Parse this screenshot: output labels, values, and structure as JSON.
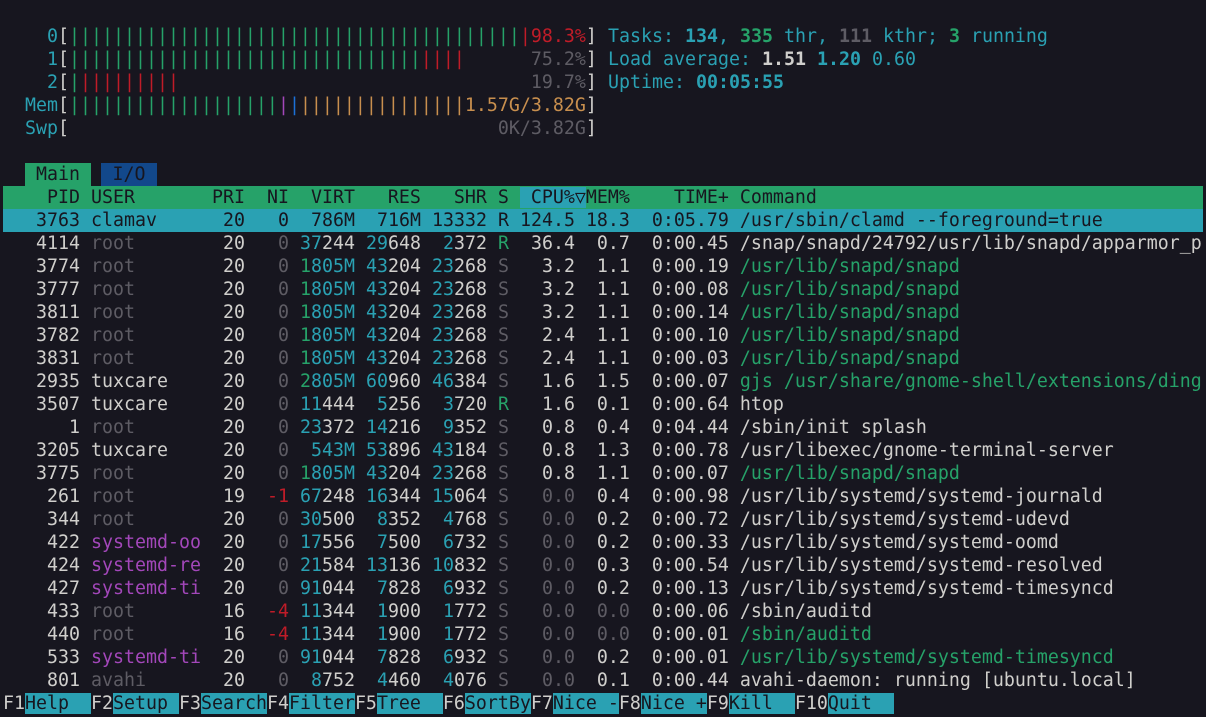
{
  "colors": {
    "background": "#17161f",
    "header_green": "#26a269",
    "selection_cyan": "#2aa1b3",
    "io_tab_blue": "#12488b",
    "red": "#c01c28",
    "magenta": "#a347ba",
    "orange": "#c88f4e"
  },
  "meters": {
    "cpus": [
      {
        "label": "0",
        "value_text": "98.3%",
        "percent": 98.3,
        "segments": [
          {
            "color": "green",
            "count": 41
          },
          {
            "color": "red",
            "count": 1
          }
        ],
        "value_color": "red"
      },
      {
        "label": "1",
        "value_text": "75.2%",
        "percent": 75.2,
        "segments": [
          {
            "color": "green",
            "count": 32
          },
          {
            "color": "red",
            "count": 4
          }
        ],
        "value_color": "gray"
      },
      {
        "label": "2",
        "value_text": "19.7%",
        "percent": 19.7,
        "segments": [
          {
            "color": "green",
            "count": 1
          },
          {
            "color": "red",
            "count": 9
          }
        ],
        "value_color": "gray"
      }
    ],
    "mem": {
      "label": "Mem",
      "value_text": "1.57G/3.82G",
      "segments": [
        {
          "color": "green",
          "count": 19
        },
        {
          "color": "magenta",
          "count": 1
        },
        {
          "color": "blue",
          "count": 1
        },
        {
          "color": "orange",
          "count": 15
        }
      ]
    },
    "swp": {
      "label": "Swp",
      "value_text": "0K/3.82G",
      "segments": []
    }
  },
  "summary": {
    "tasks_label": "Tasks: ",
    "tasks": "134",
    "threads": "335",
    "threads_label": " thr, ",
    "kthreads": "111",
    "kthreads_label": " kthr; ",
    "running": "3",
    "running_label": " running",
    "load_label": "Load average: ",
    "load1": "1.51",
    "load5": "1.20",
    "load15": "0.60",
    "uptime_label": "Uptime: ",
    "uptime": "00:05:55"
  },
  "tabs": [
    {
      "label": "Main",
      "active": true
    },
    {
      "label": "I/O",
      "active": false
    }
  ],
  "columns": {
    "pid": "PID",
    "user": "USER",
    "pri": "PRI",
    "ni": "NI",
    "virt": "VIRT",
    "res": "RES",
    "shr": "SHR",
    "s": "S",
    "cpu": "CPU%▽",
    "mem": "MEM%",
    "time": "TIME+",
    "command": "Command"
  },
  "sort_column": "CPU%",
  "processes": [
    {
      "pid": "3763",
      "user": "clamav",
      "pri": "20",
      "ni": "0",
      "virt": "786M",
      "res": "716M",
      "shr": "13332",
      "s": "R",
      "cpu": "124.5",
      "mem": "18.3",
      "time": "0:05.79",
      "command": "/usr/sbin/clamd --foreground=true",
      "selected": true,
      "thread": false
    },
    {
      "pid": "4114",
      "user": "root",
      "pri": "20",
      "ni": "0",
      "virt": "37244",
      "res": "29648",
      "shr": "2372",
      "s": "R",
      "cpu": "36.4",
      "mem": "0.7",
      "time": "0:00.45",
      "command": "/snap/snapd/24792/usr/lib/snapd/apparmor_p",
      "thread": false
    },
    {
      "pid": "3774",
      "user": "root",
      "pri": "20",
      "ni": "0",
      "virt": "1805M",
      "res": "43204",
      "shr": "23268",
      "s": "S",
      "cpu": "3.2",
      "mem": "1.1",
      "time": "0:00.19",
      "command": "/usr/lib/snapd/snapd",
      "thread": true
    },
    {
      "pid": "3777",
      "user": "root",
      "pri": "20",
      "ni": "0",
      "virt": "1805M",
      "res": "43204",
      "shr": "23268",
      "s": "S",
      "cpu": "3.2",
      "mem": "1.1",
      "time": "0:00.08",
      "command": "/usr/lib/snapd/snapd",
      "thread": true
    },
    {
      "pid": "3811",
      "user": "root",
      "pri": "20",
      "ni": "0",
      "virt": "1805M",
      "res": "43204",
      "shr": "23268",
      "s": "S",
      "cpu": "3.2",
      "mem": "1.1",
      "time": "0:00.14",
      "command": "/usr/lib/snapd/snapd",
      "thread": true
    },
    {
      "pid": "3782",
      "user": "root",
      "pri": "20",
      "ni": "0",
      "virt": "1805M",
      "res": "43204",
      "shr": "23268",
      "s": "S",
      "cpu": "2.4",
      "mem": "1.1",
      "time": "0:00.10",
      "command": "/usr/lib/snapd/snapd",
      "thread": true
    },
    {
      "pid": "3831",
      "user": "root",
      "pri": "20",
      "ni": "0",
      "virt": "1805M",
      "res": "43204",
      "shr": "23268",
      "s": "S",
      "cpu": "2.4",
      "mem": "1.1",
      "time": "0:00.03",
      "command": "/usr/lib/snapd/snapd",
      "thread": true
    },
    {
      "pid": "2935",
      "user": "tuxcare",
      "pri": "20",
      "ni": "0",
      "virt": "2805M",
      "res": "60960",
      "shr": "46384",
      "s": "S",
      "cpu": "1.6",
      "mem": "1.5",
      "time": "0:00.07",
      "command": "gjs /usr/share/gnome-shell/extensions/ding",
      "thread": true
    },
    {
      "pid": "3507",
      "user": "tuxcare",
      "pri": "20",
      "ni": "0",
      "virt": "11444",
      "res": "5256",
      "shr": "3720",
      "s": "R",
      "cpu": "1.6",
      "mem": "0.1",
      "time": "0:00.64",
      "command": "htop",
      "thread": false
    },
    {
      "pid": "1",
      "user": "root",
      "pri": "20",
      "ni": "0",
      "virt": "23372",
      "res": "14216",
      "shr": "9352",
      "s": "S",
      "cpu": "0.8",
      "mem": "0.4",
      "time": "0:04.44",
      "command": "/sbin/init splash",
      "thread": false
    },
    {
      "pid": "3205",
      "user": "tuxcare",
      "pri": "20",
      "ni": "0",
      "virt": "543M",
      "res": "53896",
      "shr": "43184",
      "s": "S",
      "cpu": "0.8",
      "mem": "1.3",
      "time": "0:00.78",
      "command": "/usr/libexec/gnome-terminal-server",
      "thread": false
    },
    {
      "pid": "3775",
      "user": "root",
      "pri": "20",
      "ni": "0",
      "virt": "1805M",
      "res": "43204",
      "shr": "23268",
      "s": "S",
      "cpu": "0.8",
      "mem": "1.1",
      "time": "0:00.07",
      "command": "/usr/lib/snapd/snapd",
      "thread": true
    },
    {
      "pid": "261",
      "user": "root",
      "pri": "19",
      "ni": "-1",
      "virt": "67248",
      "res": "16344",
      "shr": "15064",
      "s": "S",
      "cpu": "0.0",
      "mem": "0.4",
      "time": "0:00.98",
      "command": "/usr/lib/systemd/systemd-journald",
      "thread": false
    },
    {
      "pid": "344",
      "user": "root",
      "pri": "20",
      "ni": "0",
      "virt": "30500",
      "res": "8352",
      "shr": "4768",
      "s": "S",
      "cpu": "0.0",
      "mem": "0.2",
      "time": "0:00.72",
      "command": "/usr/lib/systemd/systemd-udevd",
      "thread": false
    },
    {
      "pid": "422",
      "user": "systemd-oo",
      "pri": "20",
      "ni": "0",
      "virt": "17556",
      "res": "7500",
      "shr": "6732",
      "s": "S",
      "cpu": "0.0",
      "mem": "0.2",
      "time": "0:00.33",
      "command": "/usr/lib/systemd/systemd-oomd",
      "thread": false
    },
    {
      "pid": "424",
      "user": "systemd-re",
      "pri": "20",
      "ni": "0",
      "virt": "21584",
      "res": "13136",
      "shr": "10832",
      "s": "S",
      "cpu": "0.0",
      "mem": "0.3",
      "time": "0:00.54",
      "command": "/usr/lib/systemd/systemd-resolved",
      "thread": false
    },
    {
      "pid": "427",
      "user": "systemd-ti",
      "pri": "20",
      "ni": "0",
      "virt": "91044",
      "res": "7828",
      "shr": "6932",
      "s": "S",
      "cpu": "0.0",
      "mem": "0.2",
      "time": "0:00.13",
      "command": "/usr/lib/systemd/systemd-timesyncd",
      "thread": false
    },
    {
      "pid": "433",
      "user": "root",
      "pri": "16",
      "ni": "-4",
      "virt": "11344",
      "res": "1900",
      "shr": "1772",
      "s": "S",
      "cpu": "0.0",
      "mem": "0.0",
      "time": "0:00.06",
      "command": "/sbin/auditd",
      "thread": false
    },
    {
      "pid": "440",
      "user": "root",
      "pri": "16",
      "ni": "-4",
      "virt": "11344",
      "res": "1900",
      "shr": "1772",
      "s": "S",
      "cpu": "0.0",
      "mem": "0.0",
      "time": "0:00.01",
      "command": "/sbin/auditd",
      "thread": true
    },
    {
      "pid": "533",
      "user": "systemd-ti",
      "pri": "20",
      "ni": "0",
      "virt": "91044",
      "res": "7828",
      "shr": "6932",
      "s": "S",
      "cpu": "0.0",
      "mem": "0.2",
      "time": "0:00.01",
      "command": "/usr/lib/systemd/systemd-timesyncd",
      "thread": true
    },
    {
      "pid": "801",
      "user": "avahi",
      "pri": "20",
      "ni": "0",
      "virt": "8752",
      "res": "4460",
      "shr": "4076",
      "s": "S",
      "cpu": "0.0",
      "mem": "0.1",
      "time": "0:00.44",
      "command": "avahi-daemon: running [ubuntu.local]",
      "thread": false
    }
  ],
  "function_bar": [
    {
      "key": "F1",
      "label": "Help"
    },
    {
      "key": "F2",
      "label": "Setup"
    },
    {
      "key": "F3",
      "label": "Search"
    },
    {
      "key": "F4",
      "label": "Filter"
    },
    {
      "key": "F5",
      "label": "Tree"
    },
    {
      "key": "F6",
      "label": "SortBy"
    },
    {
      "key": "F7",
      "label": "Nice -"
    },
    {
      "key": "F8",
      "label": "Nice +"
    },
    {
      "key": "F9",
      "label": "Kill"
    },
    {
      "key": "F10",
      "label": "Quit"
    }
  ]
}
